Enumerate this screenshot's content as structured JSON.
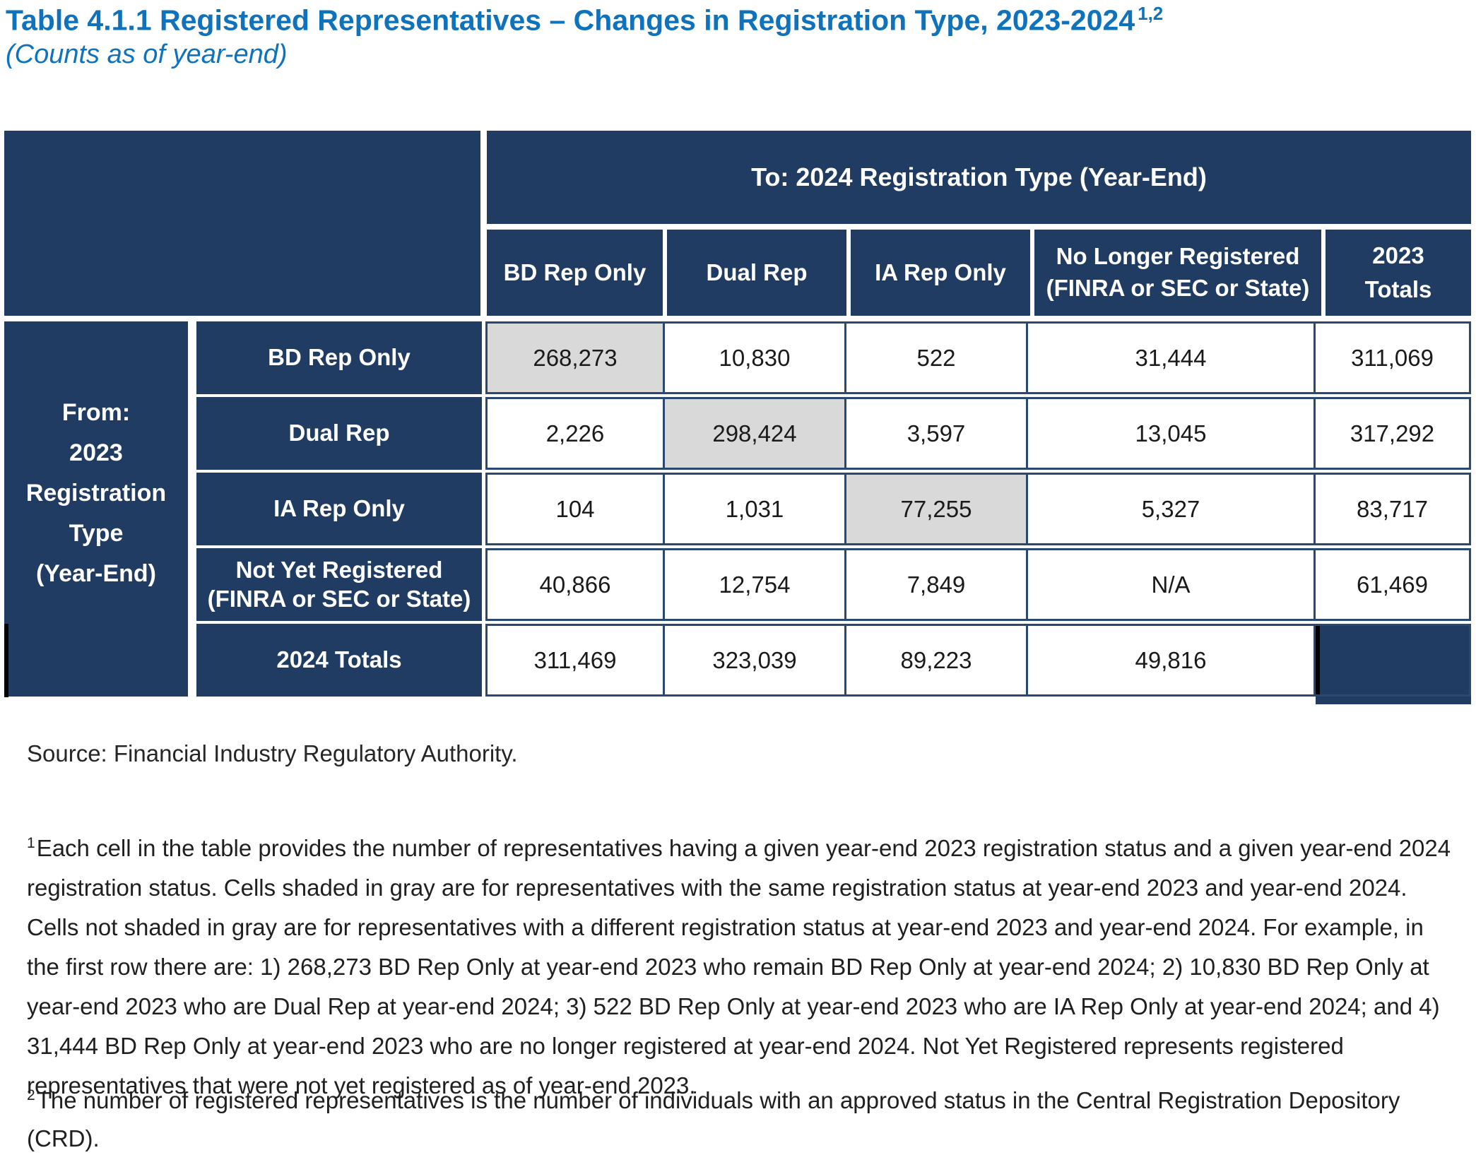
{
  "title": {
    "main": "Table 4.1.1 Registered Representatives – Changes in Registration Type, 2023-2024",
    "superscript": "1,2",
    "subtitle": "(Counts as of year-end)"
  },
  "table": {
    "to_header": "To: 2024 Registration Type (Year-End)",
    "from_header_lines": [
      "From:",
      "2023",
      "Registration",
      "Type",
      "(Year-End)"
    ],
    "col_headers": [
      {
        "line1": "BD Rep Only",
        "line2": ""
      },
      {
        "line1": "Dual Rep",
        "line2": ""
      },
      {
        "line1": "IA Rep Only",
        "line2": ""
      },
      {
        "line1": "No Longer Registered",
        "line2": "(FINRA or SEC or State)"
      },
      {
        "line1": "2023",
        "line2": "Totals"
      }
    ],
    "rows": [
      {
        "label1": "BD Rep Only",
        "label2": "",
        "values": [
          "268,273",
          "10,830",
          "522",
          "31,444",
          "311,069"
        ]
      },
      {
        "label1": "Dual Rep",
        "label2": "",
        "values": [
          "2,226",
          "298,424",
          "3,597",
          "13,045",
          "317,292"
        ]
      },
      {
        "label1": "IA Rep Only",
        "label2": "",
        "values": [
          "104",
          "1,031",
          "77,255",
          "5,327",
          "83,717"
        ]
      },
      {
        "label1": "Not Yet Registered",
        "label2": "(FINRA or SEC or State)",
        "values": [
          "40,866",
          "12,754",
          "7,849",
          "N/A",
          "61,469"
        ]
      },
      {
        "label1": "2024 Totals",
        "label2": "",
        "values": [
          "311,469",
          "323,039",
          "89,223",
          "49,816",
          ""
        ]
      }
    ]
  },
  "source": "Source: Financial Industry Regulatory Authority.",
  "footnotes": [
    {
      "marker": "1",
      "text": "Each cell in the table provides the number of representatives having a given year-end 2023 registration status and a given year-end 2024 registration status. Cells shaded in gray are for representatives with the same registration status at year-end 2023 and year-end 2024. Cells not shaded in gray are for representatives with a different registration status at year-end 2023 and year-end 2024. For example, in the first row there are: 1) 268,273 BD Rep Only at year-end 2023 who remain BD Rep Only at year-end 2024; 2) 10,830 BD Rep Only at year-end 2023 who are Dual Rep at year-end 2024; 3) 522 BD Rep Only at year-end 2023 who are IA Rep Only at year-end 2024; and 4) 31,444 BD Rep Only at year-end 2023 who are no longer registered at year-end 2024. Not Yet Registered represents registered representatives that were not yet registered as of year-end 2023."
    },
    {
      "marker": "2",
      "text": "The number of registered representatives is the number of individuals with an approved status in the Central Registration Depository (CRD)."
    }
  ],
  "colors": {
    "navy_fill": "#203C62",
    "cell_border_navy": "#2A4870",
    "diagonal_gray": "#D9D9D9",
    "title_blue": "#0F72BD",
    "artifact_black": "#000000"
  }
}
